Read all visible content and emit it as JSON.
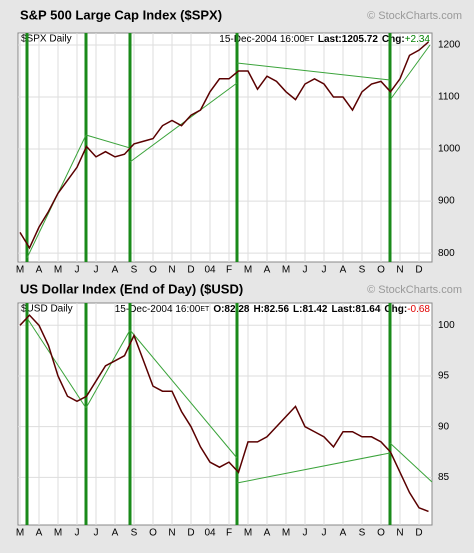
{
  "chart_data": [
    {
      "type": "line",
      "title": "S&P 500 Large Cap Index ($SPX)",
      "watermark": "© StockCharts.com",
      "symbol": "$SPX Daily",
      "date": "15-Dec-2004 16:00",
      "timezone": "ET",
      "stats": [
        "Last:1205.72",
        "Chg:"
      ],
      "change": "+2.34",
      "change_color": "#008000",
      "categories": [
        "M",
        null,
        "A",
        null,
        "M",
        null,
        "J",
        null,
        "J",
        null,
        "A",
        null,
        "S",
        null,
        "O",
        null,
        "N",
        null,
        "D",
        null,
        "04",
        null,
        "F",
        null,
        "M",
        null,
        "A",
        null,
        "M",
        null,
        "J",
        null,
        "J",
        null,
        "A",
        null,
        "S",
        null,
        "O",
        null,
        "N",
        null,
        "D",
        null
      ],
      "series": [
        {
          "name": "$SPX",
          "color": "#5a0000",
          "values": [
            840,
            810,
            850,
            880,
            915,
            940,
            965,
            1005,
            985,
            995,
            985,
            990,
            1010,
            1015,
            1020,
            1045,
            1055,
            1045,
            1065,
            1075,
            1110,
            1135,
            1135,
            1150,
            1150,
            1115,
            1140,
            1130,
            1110,
            1095,
            1125,
            1135,
            1125,
            1100,
            1100,
            1075,
            1110,
            1125,
            1130,
            1110,
            1135,
            1180,
            1190,
            1205.72
          ]
        }
      ],
      "ylim": [
        783,
        1223
      ],
      "yticks": [
        800,
        900,
        1000,
        1100,
        1200
      ],
      "grid": true
    },
    {
      "type": "line",
      "title": "US Dollar Index (End of Day) ($USD)",
      "watermark": "© StockCharts.com",
      "symbol": "$USD Daily",
      "date": "15-Dec-2004 16:00",
      "timezone": "ET",
      "stats": [
        "O:82.28",
        "H:82.56",
        "L:81.42",
        "Last:81.64",
        "Chg:"
      ],
      "change": "-0.68",
      "change_color": "#e00000",
      "categories": [
        "M",
        null,
        "A",
        null,
        "M",
        null,
        "J",
        null,
        "J",
        null,
        "A",
        null,
        "S",
        null,
        "O",
        null,
        "N",
        null,
        "D",
        null,
        "04",
        null,
        "F",
        null,
        "M",
        null,
        "A",
        null,
        "M",
        null,
        "J",
        null,
        "J",
        null,
        "A",
        null,
        "S",
        null,
        "O",
        null,
        "N",
        null,
        "D",
        null
      ],
      "series": [
        {
          "name": "$USD",
          "color": "#5a0000",
          "values": [
            100,
            101,
            100,
            98,
            95,
            93,
            92.5,
            93,
            94.5,
            96,
            96.5,
            97,
            99,
            96.5,
            94,
            93.5,
            93.5,
            91.5,
            90,
            88,
            86.5,
            86,
            86.5,
            85.5,
            88.5,
            88.5,
            89,
            90,
            91,
            92,
            90,
            89.5,
            89,
            88,
            89.5,
            89.5,
            89,
            89,
            88.5,
            87.5,
            85.5,
            83.5,
            82,
            81.64
          ]
        }
      ],
      "ylim": [
        80.3,
        102.2
      ],
      "yticks": [
        85,
        90,
        95,
        100
      ],
      "grid": true
    }
  ]
}
